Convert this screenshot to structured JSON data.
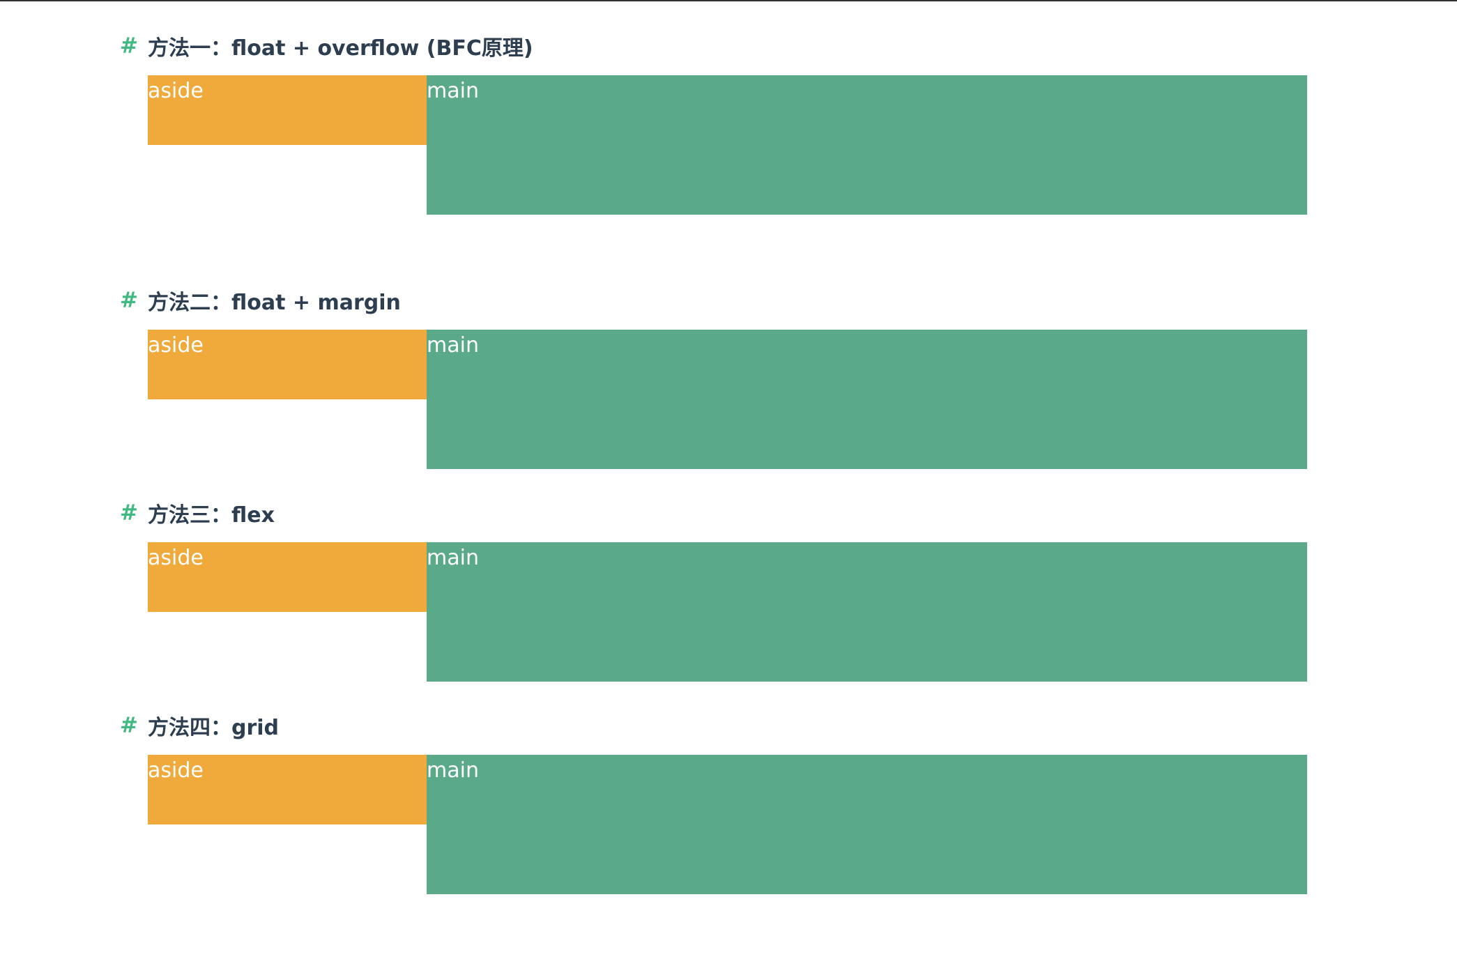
{
  "sections": [
    {
      "hash": "#",
      "title": "方法一：float + overflow (BFC原理)",
      "aside_label": "aside",
      "main_label": "main",
      "colors": {
        "aside": "#f0a93b",
        "main": "#5aa989"
      }
    },
    {
      "hash": "#",
      "title": "方法二：float + margin",
      "aside_label": "aside",
      "main_label": "main",
      "colors": {
        "aside": "#f0a93b",
        "main": "#5aa989"
      }
    },
    {
      "hash": "#",
      "title": "方法三：flex",
      "aside_label": "aside",
      "main_label": "main",
      "colors": {
        "aside": "#f0a93b",
        "main": "#5aa989"
      }
    },
    {
      "hash": "#",
      "title": "方法四：grid",
      "aside_label": "aside",
      "main_label": "main",
      "colors": {
        "aside": "#f0a93b",
        "main": "#5aa989"
      }
    }
  ]
}
